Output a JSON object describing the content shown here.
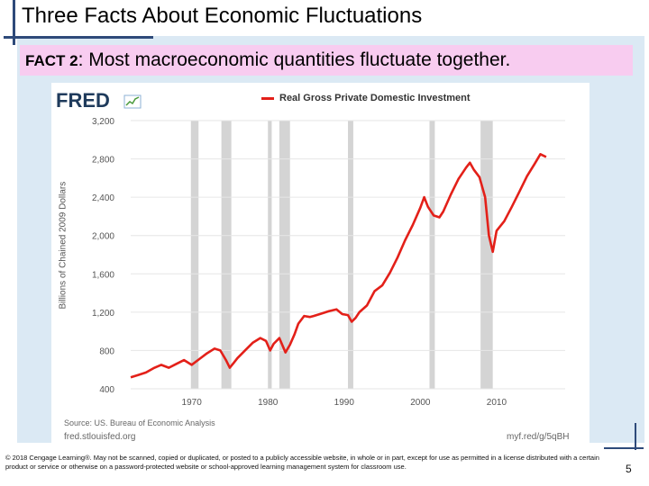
{
  "slide": {
    "title": "Three Facts About Economic Fluctuations",
    "fact_label": "FACT 2",
    "fact_text": ": Most macroeconomic quantities fluctuate together.",
    "copyright": "© 2018 Cengage Learning®. May not be scanned, copied or duplicated, or posted to a publicly accessible website, in whole or in part, except for use as permitted in a license distributed with a certain product or service or otherwise on a password-protected website or school-approved learning management system for classroom use.",
    "page_number": "5"
  },
  "colors": {
    "series": "#e32019",
    "recession": "#d4d4d4",
    "panel": "#dbe9f4",
    "fact_box": "#f8ccf0"
  },
  "chart_data": {
    "type": "line",
    "logo_text": "FRED",
    "title": "",
    "xlabel": "",
    "ylabel": "Billions of Chained 2009 Dollars",
    "source": "Source: US. Bureau of Economic Analysis",
    "fred_url": "fred.stlouisfed.org",
    "short_url": "myf.red/g/5qBH",
    "xlim": [
      1962,
      2019
    ],
    "ylim": [
      400,
      3200
    ],
    "x_ticks": [
      1970,
      1980,
      1990,
      2000,
      2010
    ],
    "y_ticks": [
      400,
      800,
      1200,
      1600,
      2000,
      2400,
      2800,
      3200
    ],
    "y_tick_labels": [
      "400",
      "800",
      "1,200",
      "1,600",
      "2,000",
      "2,400",
      "2,800",
      "3,200"
    ],
    "grid": true,
    "legend": "top",
    "recessions": [
      [
        1969.9,
        1970.9
      ],
      [
        1973.9,
        1975.2
      ],
      [
        1980.0,
        1980.5
      ],
      [
        1981.5,
        1982.9
      ],
      [
        1990.5,
        1991.2
      ],
      [
        2001.2,
        2001.9
      ],
      [
        2007.9,
        2009.5
      ]
    ],
    "series": [
      {
        "name": "Real Gross Private Domestic Investment",
        "x": [
          1962.0,
          1963.0,
          1964.0,
          1965.0,
          1966.0,
          1967.0,
          1968.0,
          1969.0,
          1970.0,
          1971.0,
          1972.0,
          1973.0,
          1973.75,
          1974.5,
          1975.0,
          1975.5,
          1976.0,
          1977.0,
          1978.0,
          1979.0,
          1979.75,
          1980.3,
          1980.75,
          1981.5,
          1982.3,
          1982.9,
          1983.5,
          1984.0,
          1984.75,
          1985.5,
          1986.0,
          1987.0,
          1988.0,
          1989.0,
          1989.75,
          1990.5,
          1991.0,
          1991.5,
          1992.0,
          1993.0,
          1994.0,
          1995.0,
          1996.0,
          1997.0,
          1998.0,
          1999.0,
          2000.0,
          2000.5,
          2001.0,
          2001.75,
          2002.5,
          2003.0,
          2004.0,
          2005.0,
          2006.0,
          2006.5,
          2007.0,
          2007.75,
          2008.5,
          2009.0,
          2009.5,
          2010.0,
          2011.0,
          2012.0,
          2013.0,
          2014.0,
          2015.0,
          2015.75,
          2016.5
        ],
        "y": [
          520,
          545,
          570,
          615,
          650,
          620,
          660,
          700,
          650,
          710,
          770,
          820,
          800,
          700,
          620,
          670,
          720,
          800,
          880,
          930,
          900,
          800,
          870,
          930,
          780,
          860,
          970,
          1080,
          1160,
          1150,
          1160,
          1185,
          1210,
          1230,
          1180,
          1170,
          1100,
          1140,
          1200,
          1270,
          1420,
          1480,
          1610,
          1770,
          1950,
          2110,
          2290,
          2400,
          2300,
          2210,
          2190,
          2250,
          2430,
          2590,
          2710,
          2760,
          2690,
          2610,
          2400,
          2000,
          1830,
          2050,
          2150,
          2300,
          2460,
          2620,
          2750,
          2850,
          2820
        ]
      }
    ]
  }
}
